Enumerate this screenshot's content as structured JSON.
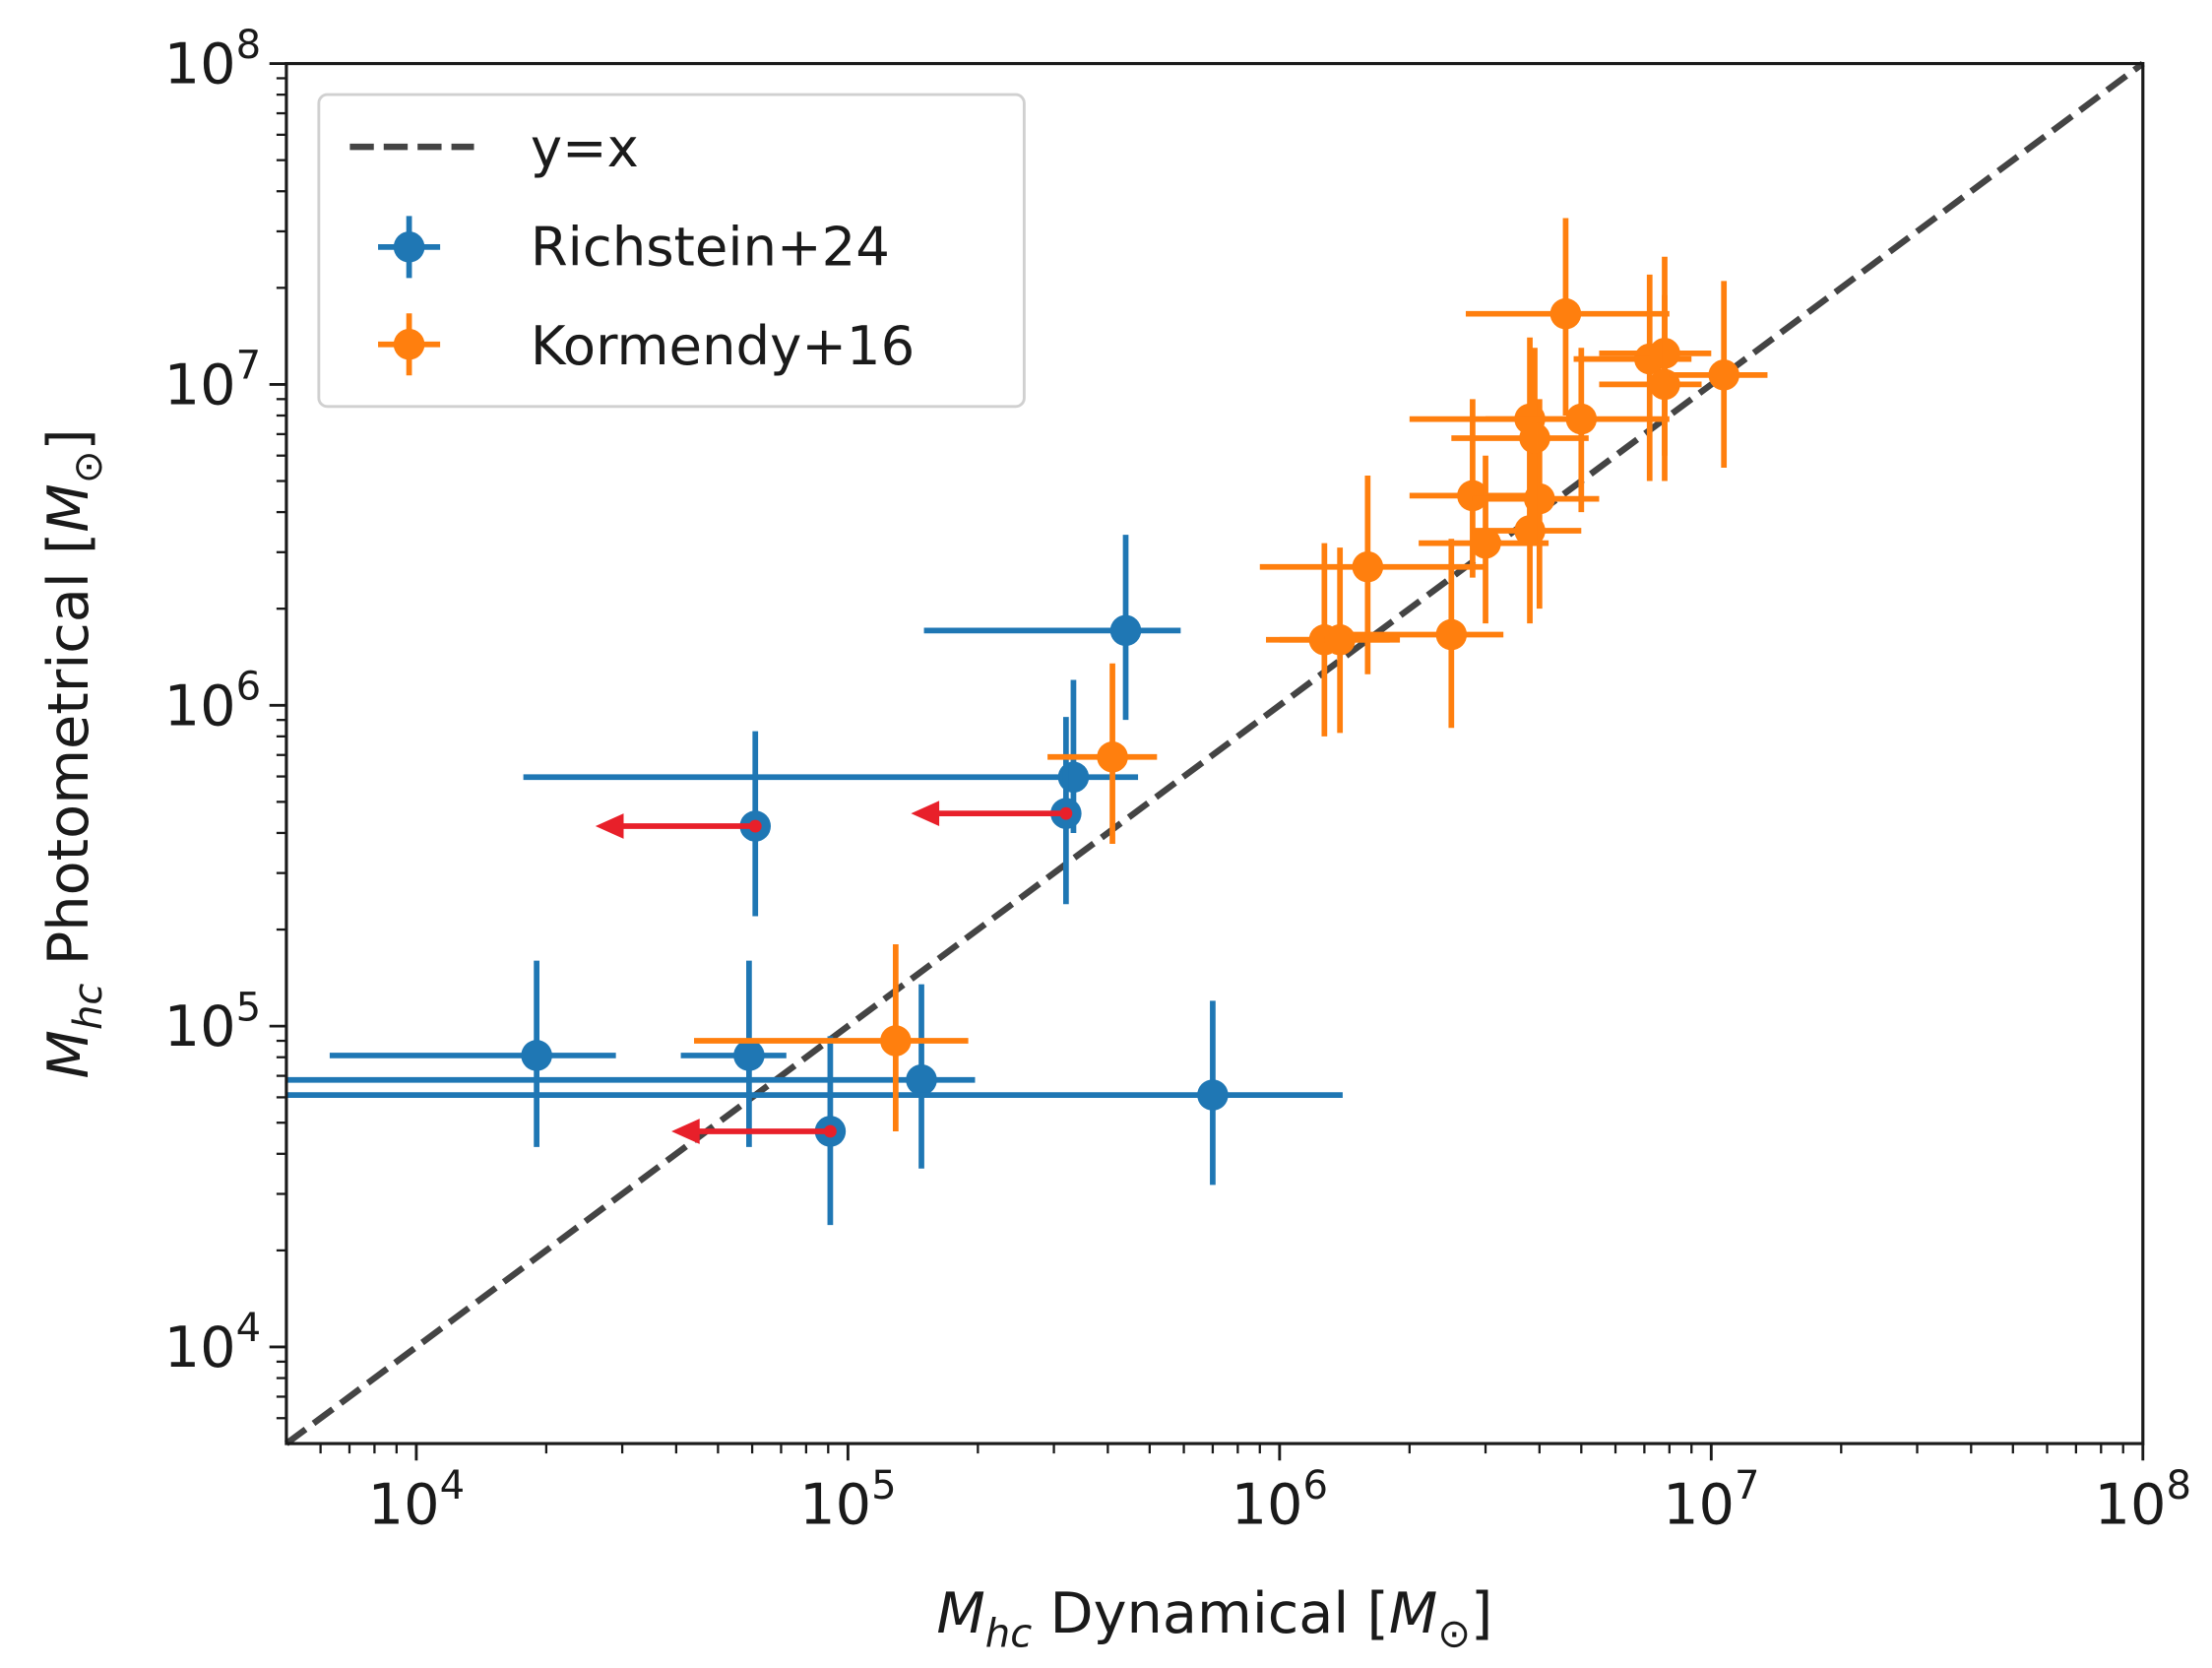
{
  "chart_data": {
    "type": "scatter",
    "xscale": "log",
    "yscale": "log",
    "xlim": [
      5000,
      100000000
    ],
    "ylim": [
      5000,
      100000000
    ],
    "xlabel": {
      "symbol": "M",
      "sub": "hc",
      "text": " Dynamical [",
      "unit": "M",
      "unit_sub": "⊙",
      "close": "]"
    },
    "ylabel": {
      "symbol": "M",
      "sub": "hc",
      "text": " Photometrical [",
      "unit": "M",
      "unit_sub": "⊙",
      "close": "]"
    },
    "x_ticks": [
      {
        "base": "10",
        "exp": "4",
        "value": 10000
      },
      {
        "base": "10",
        "exp": "5",
        "value": 100000
      },
      {
        "base": "10",
        "exp": "6",
        "value": 1000000
      },
      {
        "base": "10",
        "exp": "7",
        "value": 10000000
      },
      {
        "base": "10",
        "exp": "8",
        "value": 100000000
      }
    ],
    "y_ticks": [
      {
        "base": "10",
        "exp": "4",
        "value": 10000
      },
      {
        "base": "10",
        "exp": "5",
        "value": 100000
      },
      {
        "base": "10",
        "exp": "6",
        "value": 1000000
      },
      {
        "base": "10",
        "exp": "7",
        "value": 10000000
      },
      {
        "base": "10",
        "exp": "8",
        "value": 100000000
      }
    ],
    "legend": {
      "placement": "top-left",
      "entries": [
        {
          "label": "y=x",
          "kind": "dashed-line",
          "color": "#444444"
        },
        {
          "label": "Richstein+24",
          "kind": "errorbar",
          "color": "#1f77b4"
        },
        {
          "label": "Kormendy+16",
          "kind": "errorbar",
          "color": "#ff7f0e"
        }
      ]
    },
    "reference_line": {
      "label": "y=x",
      "color": "#444444"
    },
    "upper_limit_color": "#e8202a",
    "series": [
      {
        "name": "Richstein+24",
        "color": "#1f77b4",
        "points": [
          {
            "x": 440000,
            "y": 1710000,
            "xmin": 150000,
            "xmax": 590000,
            "ymin": 900000,
            "ymax": 3400000
          },
          {
            "x": 333000,
            "y": 597000,
            "xmin": 17700,
            "xmax": 470000,
            "ymin": 400000,
            "ymax": 1200000
          },
          {
            "x": 61000,
            "y": 420000,
            "xmin": null,
            "xmax": null,
            "ymin": 220000,
            "ymax": 830000,
            "upper_limit_x": 26000
          },
          {
            "x": 320000,
            "y": 460000,
            "xmin": null,
            "xmax": null,
            "ymin": 240000,
            "ymax": 920000,
            "upper_limit_x": 140000
          },
          {
            "x": 19000,
            "y": 81000,
            "xmin": 6300,
            "xmax": 29000,
            "ymin": 42000,
            "ymax": 160000
          },
          {
            "x": 59000,
            "y": 81000,
            "xmin": 41000,
            "xmax": 72000,
            "ymin": 42000,
            "ymax": 160000
          },
          {
            "x": 148000,
            "y": 68000,
            "xmin": 5000,
            "xmax": 197000,
            "ymin": 36000,
            "ymax": 135000
          },
          {
            "x": 700000,
            "y": 61000,
            "xmin": 5000,
            "xmax": 1400000,
            "ymin": 32000,
            "ymax": 120000
          },
          {
            "x": 91000,
            "y": 47000,
            "xmin": null,
            "xmax": null,
            "ymin": 24000,
            "ymax": 93000,
            "upper_limit_x": 39000
          }
        ]
      },
      {
        "name": "Kormendy+16",
        "color": "#ff7f0e",
        "points": [
          {
            "x": 410000,
            "y": 690000,
            "xmin": 290000,
            "xmax": 520000,
            "ymin": 370000,
            "ymax": 1350000
          },
          {
            "x": 129000,
            "y": 90000,
            "xmin": 44000,
            "xmax": 190000,
            "ymin": 47000,
            "ymax": 180000
          },
          {
            "x": 1270000,
            "y": 1600000,
            "xmin": 930000,
            "xmax": 1800000,
            "ymin": 800000,
            "ymax": 3200000
          },
          {
            "x": 1380000,
            "y": 1600000,
            "xmin": 1000000,
            "xmax": 1900000,
            "ymin": 820000,
            "ymax": 3100000
          },
          {
            "x": 1600000,
            "y": 2700000,
            "xmin": 900000,
            "xmax": 3000000,
            "ymin": 1250000,
            "ymax": 5200000
          },
          {
            "x": 2500000,
            "y": 1660000,
            "xmin": 1300000,
            "xmax": 3300000,
            "ymin": 850000,
            "ymax": 3300000
          },
          {
            "x": 2800000,
            "y": 4500000,
            "xmin": 2000000,
            "xmax": 4200000,
            "ymin": 2500000,
            "ymax": 9000000
          },
          {
            "x": 3000000,
            "y": 3200000,
            "xmin": 2100000,
            "xmax": 4200000,
            "ymin": 1800000,
            "ymax": 6000000
          },
          {
            "x": 3800000,
            "y": 3500000,
            "xmin": 2800000,
            "xmax": 5000000,
            "ymin": 1800000,
            "ymax": 7000000
          },
          {
            "x": 4000000,
            "y": 4400000,
            "xmin": 2800000,
            "xmax": 5500000,
            "ymin": 2000000,
            "ymax": 9000000
          },
          {
            "x": 3800000,
            "y": 7800000,
            "xmin": 2000000,
            "xmax": 5000000,
            "ymin": 3500000,
            "ymax": 14000000
          },
          {
            "x": 3900000,
            "y": 6800000,
            "xmin": 2500000,
            "xmax": 5200000,
            "ymin": 3200000,
            "ymax": 13000000
          },
          {
            "x": 4600000,
            "y": 16600000,
            "xmin": 2700000,
            "xmax": 8000000,
            "ymin": 8000000,
            "ymax": 33000000
          },
          {
            "x": 5000000,
            "y": 7800000,
            "xmin": 3000000,
            "xmax": 8000000,
            "ymin": 4000000,
            "ymax": 13000000
          },
          {
            "x": 7200000,
            "y": 12000000,
            "xmin": 4800000,
            "xmax": 9000000,
            "ymin": 5000000,
            "ymax": 22000000
          },
          {
            "x": 7800000,
            "y": 12500000,
            "xmin": 5500000,
            "xmax": 10000000,
            "ymin": 6000000,
            "ymax": 25000000
          },
          {
            "x": 7800000,
            "y": 10000000,
            "xmin": 5500000,
            "xmax": 9500000,
            "ymin": 5000000,
            "ymax": 19000000
          },
          {
            "x": 10700000,
            "y": 10700000,
            "xmin": 8000000,
            "xmax": 13500000,
            "ymin": 5500000,
            "ymax": 21000000
          }
        ]
      }
    ]
  }
}
